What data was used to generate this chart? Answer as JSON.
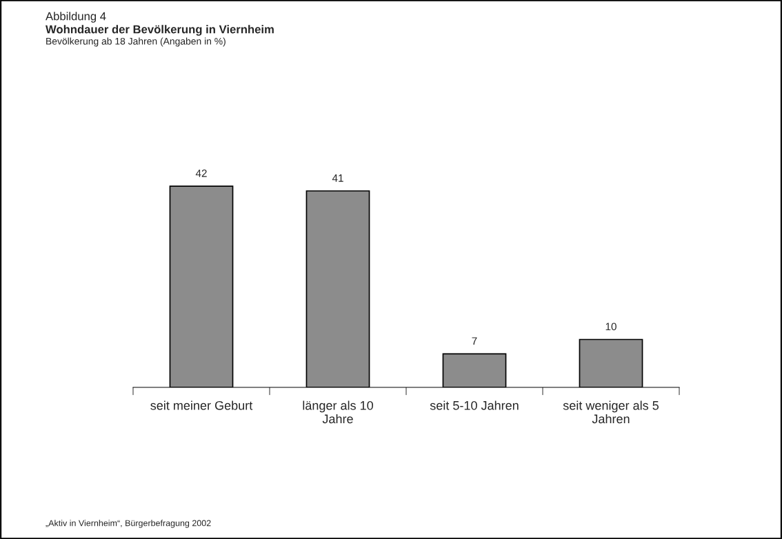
{
  "chart_data": {
    "type": "bar",
    "title": "Wohndauer der Bevölkerung in Viernheim",
    "subtitle": "Bevölkerung ab 18 Jahren (Angaben in %)",
    "annotations": [
      "Abbildung 4",
      "„Aktiv in Viernheim“, Bürgerbefragung 2002"
    ],
    "categories": [
      "seit meiner Geburt",
      "länger als 10\nJahre",
      "seit 5-10 Jahren",
      "seit weniger als 5\nJahren"
    ],
    "values": [
      42,
      41,
      7,
      10
    ],
    "color": "#8c8c8c",
    "data_labels": true,
    "grid": false,
    "legend": false
  }
}
